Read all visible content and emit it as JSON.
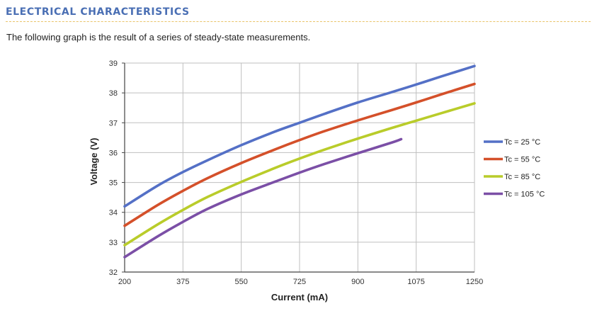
{
  "header": {
    "section_title": "ELECTRICAL CHARACTERISTICS",
    "intro": "The following graph is the result of a series of steady-state measurements."
  },
  "colors": {
    "title": "#4a6fb4",
    "rule": "#e9c46a",
    "grid": "#bfbfbf"
  },
  "chart_data": {
    "type": "line",
    "title": "",
    "xlabel": "Current (mA)",
    "ylabel": "Voltage (V)",
    "xlim": [
      200,
      1250
    ],
    "ylim": [
      32,
      39
    ],
    "x_ticks": [
      200,
      375,
      550,
      725,
      900,
      1075,
      1250
    ],
    "y_ticks": [
      32,
      33,
      34,
      35,
      36,
      37,
      38,
      39
    ],
    "grid": true,
    "legend_position": "right",
    "series": [
      {
        "name": "Tc = 25 °C",
        "color": "#5470c6",
        "x": [
          200,
          300,
          375,
          450,
          550,
          650,
          725,
          800,
          900,
          1000,
          1075,
          1150,
          1250
        ],
        "y": [
          34.2,
          34.9,
          35.35,
          35.75,
          36.25,
          36.7,
          37.0,
          37.3,
          37.68,
          38.02,
          38.28,
          38.55,
          38.9
        ]
      },
      {
        "name": "Tc = 55 °C",
        "color": "#d4502a",
        "x": [
          200,
          300,
          375,
          450,
          550,
          650,
          725,
          800,
          900,
          1000,
          1075,
          1150,
          1250
        ],
        "y": [
          33.55,
          34.25,
          34.72,
          35.15,
          35.65,
          36.1,
          36.42,
          36.72,
          37.08,
          37.42,
          37.68,
          37.95,
          38.3
        ]
      },
      {
        "name": "Tc = 85 °C",
        "color": "#b9cc2a",
        "x": [
          200,
          300,
          375,
          450,
          550,
          650,
          725,
          800,
          900,
          1000,
          1075,
          1150,
          1250
        ],
        "y": [
          32.9,
          33.6,
          34.08,
          34.52,
          35.02,
          35.48,
          35.8,
          36.1,
          36.47,
          36.82,
          37.07,
          37.32,
          37.65
        ]
      },
      {
        "name": "Tc = 105 °C",
        "color": "#7b4fa6",
        "x": [
          200,
          300,
          375,
          450,
          550,
          650,
          725,
          800,
          900,
          1000,
          1030
        ],
        "y": [
          32.5,
          33.2,
          33.68,
          34.12,
          34.6,
          35.02,
          35.33,
          35.62,
          35.98,
          36.33,
          36.45
        ]
      }
    ]
  }
}
